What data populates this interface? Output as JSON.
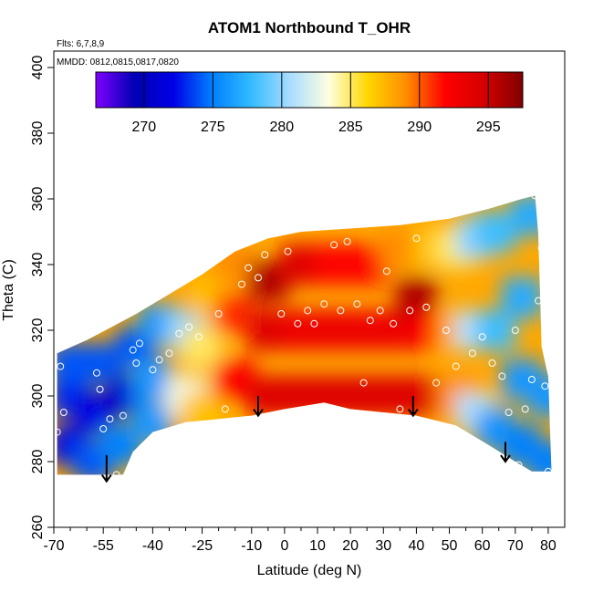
{
  "chart_data": {
    "type": "heatmap",
    "title": "ATOM1 Northbound T_OHR",
    "xlabel": "Latitude (deg N)",
    "ylabel": "Theta (C)",
    "annotations": [
      "Flts: 6,7,8,9",
      "MMDD: 0812,0815,0817,0820"
    ],
    "xlim": [
      -70,
      85
    ],
    "ylim": [
      260,
      405
    ],
    "x_ticks": [
      -70,
      -55,
      -40,
      -25,
      -10,
      0,
      10,
      20,
      30,
      40,
      50,
      60,
      70,
      80
    ],
    "x_tick_labels": [
      "-70",
      "-55",
      "-40",
      "-25",
      "-10",
      "0",
      "10",
      "20",
      "30",
      "40",
      "50",
      "60",
      "70",
      "80"
    ],
    "x_minor_ticks": [
      -65,
      -60,
      -50,
      -45,
      -35,
      -30,
      -20,
      -15,
      -5,
      5,
      15,
      25,
      35,
      45,
      55,
      65,
      75
    ],
    "y_ticks": [
      260,
      280,
      300,
      320,
      340,
      360,
      380,
      400
    ],
    "y_tick_labels": [
      "260",
      "280",
      "300",
      "320",
      "340",
      "360",
      "380",
      "400"
    ],
    "colorbar": {
      "range": [
        266.5,
        297.5
      ],
      "ticks": [
        270,
        275,
        280,
        285,
        290,
        295
      ],
      "tick_labels": [
        "270",
        "275",
        "280",
        "285",
        "290",
        "295"
      ],
      "colors": [
        "#7f00ff",
        "#0000b3",
        "#0000e6",
        "#0080ff",
        "#33bbff",
        "#a8dcff",
        "#ffffe0",
        "#ffd700",
        "#ff8c00",
        "#ff0000",
        "#d40000",
        "#800000"
      ]
    },
    "grid": false,
    "legend": "none",
    "coverage_boundary": [
      [
        -69,
        276
      ],
      [
        -69,
        313
      ],
      [
        -60,
        317
      ],
      [
        -45,
        325
      ],
      [
        -35,
        331
      ],
      [
        -25,
        337
      ],
      [
        -15,
        344
      ],
      [
        -5,
        348
      ],
      [
        5,
        350
      ],
      [
        20,
        351
      ],
      [
        35,
        352
      ],
      [
        50,
        354
      ],
      [
        62,
        357
      ],
      [
        72,
        360
      ],
      [
        76,
        361
      ],
      [
        77,
        349
      ],
      [
        78,
        315
      ],
      [
        80,
        306
      ],
      [
        81,
        277
      ],
      [
        75,
        277
      ],
      [
        70,
        280
      ],
      [
        62,
        285
      ],
      [
        52,
        291
      ],
      [
        40,
        294
      ],
      [
        30,
        295
      ],
      [
        20,
        296
      ],
      [
        12,
        298
      ],
      [
        0,
        296
      ],
      [
        -10,
        294
      ],
      [
        -20,
        293
      ],
      [
        -30,
        292
      ],
      [
        -40,
        289
      ],
      [
        -46,
        283
      ],
      [
        -49,
        276
      ]
    ],
    "field_points": [
      {
        "lat": -65,
        "theta": 285,
        "t": 272
      },
      {
        "lat": -65,
        "theta": 300,
        "t": 273
      },
      {
        "lat": -65,
        "theta": 310,
        "t": 274
      },
      {
        "lat": -58,
        "theta": 280,
        "t": 274
      },
      {
        "lat": -58,
        "theta": 295,
        "t": 272
      },
      {
        "lat": -55,
        "theta": 310,
        "t": 274
      },
      {
        "lat": -50,
        "theta": 285,
        "t": 275
      },
      {
        "lat": -48,
        "theta": 300,
        "t": 271
      },
      {
        "lat": -45,
        "theta": 315,
        "t": 274
      },
      {
        "lat": -40,
        "theta": 292,
        "t": 276
      },
      {
        "lat": -40,
        "theta": 305,
        "t": 276
      },
      {
        "lat": -38,
        "theta": 322,
        "t": 276
      },
      {
        "lat": -30,
        "theta": 300,
        "t": 283
      },
      {
        "lat": -30,
        "theta": 320,
        "t": 280
      },
      {
        "lat": -25,
        "theta": 295,
        "t": 287
      },
      {
        "lat": -25,
        "theta": 315,
        "t": 285
      },
      {
        "lat": -22,
        "theta": 330,
        "t": 287
      },
      {
        "lat": -15,
        "theta": 305,
        "t": 292
      },
      {
        "lat": -15,
        "theta": 325,
        "t": 291
      },
      {
        "lat": -15,
        "theta": 340,
        "t": 289
      },
      {
        "lat": -5,
        "theta": 300,
        "t": 294
      },
      {
        "lat": -5,
        "theta": 320,
        "t": 294
      },
      {
        "lat": -5,
        "theta": 335,
        "t": 296
      },
      {
        "lat": 5,
        "theta": 300,
        "t": 294
      },
      {
        "lat": 5,
        "theta": 320,
        "t": 293
      },
      {
        "lat": 5,
        "theta": 340,
        "t": 294
      },
      {
        "lat": 15,
        "theta": 300,
        "t": 294
      },
      {
        "lat": 15,
        "theta": 320,
        "t": 293
      },
      {
        "lat": 15,
        "theta": 340,
        "t": 292
      },
      {
        "lat": 25,
        "theta": 300,
        "t": 294
      },
      {
        "lat": 25,
        "theta": 320,
        "t": 293
      },
      {
        "lat": 25,
        "theta": 340,
        "t": 292
      },
      {
        "lat": 35,
        "theta": 300,
        "t": 294
      },
      {
        "lat": 35,
        "theta": 320,
        "t": 293
      },
      {
        "lat": 35,
        "theta": 345,
        "t": 289
      },
      {
        "lat": 40,
        "theta": 330,
        "t": 296
      },
      {
        "lat": 45,
        "theta": 300,
        "t": 294
      },
      {
        "lat": 45,
        "theta": 320,
        "t": 292
      },
      {
        "lat": 45,
        "theta": 345,
        "t": 287
      },
      {
        "lat": 52,
        "theta": 300,
        "t": 289
      },
      {
        "lat": 52,
        "theta": 320,
        "t": 288
      },
      {
        "lat": 52,
        "theta": 345,
        "t": 285
      },
      {
        "lat": 58,
        "theta": 295,
        "t": 281
      },
      {
        "lat": 58,
        "theta": 320,
        "t": 281
      },
      {
        "lat": 58,
        "theta": 348,
        "t": 280
      },
      {
        "lat": 64,
        "theta": 290,
        "t": 276
      },
      {
        "lat": 64,
        "theta": 320,
        "t": 278
      },
      {
        "lat": 64,
        "theta": 350,
        "t": 278
      },
      {
        "lat": 72,
        "theta": 285,
        "t": 275
      },
      {
        "lat": 72,
        "theta": 305,
        "t": 276
      },
      {
        "lat": 72,
        "theta": 330,
        "t": 277
      },
      {
        "lat": 75,
        "theta": 355,
        "t": 277
      },
      {
        "lat": 80,
        "theta": 280,
        "t": 275
      },
      {
        "lat": 80,
        "theta": 300,
        "t": 276
      }
    ],
    "observation_points": [
      {
        "lat": -69,
        "theta": 289
      },
      {
        "lat": -68,
        "theta": 309
      },
      {
        "lat": -67,
        "theta": 295
      },
      {
        "lat": -57,
        "theta": 307
      },
      {
        "lat": -56,
        "theta": 302
      },
      {
        "lat": -55,
        "theta": 290
      },
      {
        "lat": -53,
        "theta": 293
      },
      {
        "lat": -51,
        "theta": 276
      },
      {
        "lat": -49,
        "theta": 294
      },
      {
        "lat": -46,
        "theta": 314
      },
      {
        "lat": -45,
        "theta": 310
      },
      {
        "lat": -44,
        "theta": 316
      },
      {
        "lat": -40,
        "theta": 308
      },
      {
        "lat": -38,
        "theta": 311
      },
      {
        "lat": -35,
        "theta": 313
      },
      {
        "lat": -32,
        "theta": 319
      },
      {
        "lat": -29,
        "theta": 321
      },
      {
        "lat": -26,
        "theta": 318
      },
      {
        "lat": -20,
        "theta": 325
      },
      {
        "lat": -18,
        "theta": 296
      },
      {
        "lat": -13,
        "theta": 334
      },
      {
        "lat": -11,
        "theta": 339
      },
      {
        "lat": -8,
        "theta": 336
      },
      {
        "lat": -6,
        "theta": 343
      },
      {
        "lat": -1,
        "theta": 325
      },
      {
        "lat": 1,
        "theta": 344
      },
      {
        "lat": 4,
        "theta": 322
      },
      {
        "lat": 7,
        "theta": 326
      },
      {
        "lat": 9,
        "theta": 322
      },
      {
        "lat": 12,
        "theta": 328
      },
      {
        "lat": 15,
        "theta": 346
      },
      {
        "lat": 17,
        "theta": 326
      },
      {
        "lat": 19,
        "theta": 347
      },
      {
        "lat": 22,
        "theta": 328
      },
      {
        "lat": 24,
        "theta": 304
      },
      {
        "lat": 26,
        "theta": 323
      },
      {
        "lat": 29,
        "theta": 326
      },
      {
        "lat": 31,
        "theta": 338
      },
      {
        "lat": 33,
        "theta": 322
      },
      {
        "lat": 35,
        "theta": 296
      },
      {
        "lat": 38,
        "theta": 326
      },
      {
        "lat": 40,
        "theta": 348
      },
      {
        "lat": 43,
        "theta": 327
      },
      {
        "lat": 46,
        "theta": 304
      },
      {
        "lat": 49,
        "theta": 320
      },
      {
        "lat": 52,
        "theta": 309
      },
      {
        "lat": 57,
        "theta": 313
      },
      {
        "lat": 60,
        "theta": 318
      },
      {
        "lat": 63,
        "theta": 310
      },
      {
        "lat": 66,
        "theta": 306
      },
      {
        "lat": 68,
        "theta": 295
      },
      {
        "lat": 70,
        "theta": 320
      },
      {
        "lat": 73,
        "theta": 296
      },
      {
        "lat": 75,
        "theta": 305
      },
      {
        "lat": 77,
        "theta": 329
      },
      {
        "lat": 78,
        "theta": 345
      },
      {
        "lat": 79,
        "theta": 303
      },
      {
        "lat": 80,
        "theta": 277
      },
      {
        "lat": 71,
        "theta": 279
      },
      {
        "lat": 76,
        "theta": 361
      }
    ],
    "arrows": [
      {
        "lat": -54,
        "theta_top": 282,
        "theta_bottom": 274
      },
      {
        "lat": -8,
        "theta_top": 300,
        "theta_bottom": 294
      },
      {
        "lat": 39,
        "theta_top": 300,
        "theta_bottom": 294
      },
      {
        "lat": 67,
        "theta_top": 286,
        "theta_bottom": 280
      }
    ]
  }
}
